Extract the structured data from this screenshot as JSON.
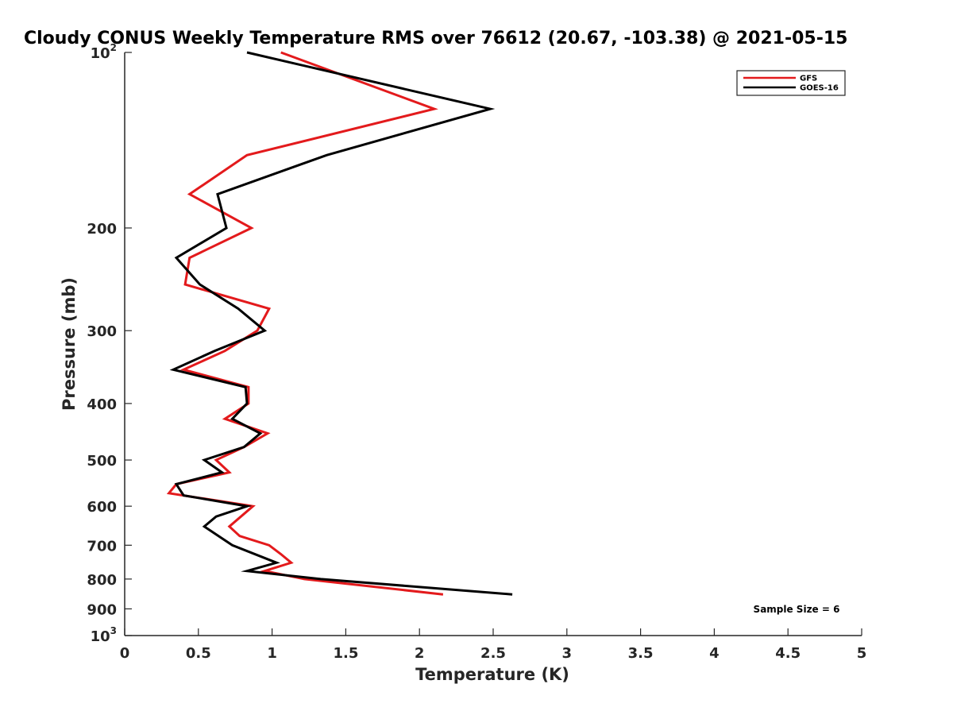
{
  "chart_data": {
    "type": "line",
    "title": "Cloudy CONUS Weekly Temperature RMS over 76612 (20.67, -103.38) @ 2021-05-15",
    "xlabel": "Temperature (K)",
    "ylabel": "Pressure (mb)",
    "xlim": [
      0,
      5
    ],
    "ylim": [
      100,
      1000
    ],
    "yscale": "log",
    "y_reversed": true,
    "x_ticks": [
      0,
      0.5,
      1,
      1.5,
      2,
      2.5,
      3,
      3.5,
      4,
      4.5,
      5
    ],
    "x_tick_labels": [
      "0",
      "0.5",
      "1",
      "1.5",
      "2",
      "2.5",
      "3",
      "3.5",
      "4",
      "4.5",
      "5"
    ],
    "y_ticks": [
      {
        "value": 100,
        "base": "10",
        "exp": "2"
      },
      {
        "value": 200,
        "label": "200"
      },
      {
        "value": 300,
        "label": "300"
      },
      {
        "value": 400,
        "label": "400"
      },
      {
        "value": 500,
        "label": "500"
      },
      {
        "value": 600,
        "label": "600"
      },
      {
        "value": 700,
        "label": "700"
      },
      {
        "value": 800,
        "label": "800"
      },
      {
        "value": 900,
        "label": "900"
      },
      {
        "value": 1000,
        "base": "10",
        "exp": "3"
      }
    ],
    "grid": false,
    "legend_position": "top-right",
    "series": [
      {
        "name": "GFS",
        "color": "#e31a1c",
        "points": [
          [
            1.06,
            100
          ],
          [
            2.1,
            125
          ],
          [
            0.83,
            150
          ],
          [
            0.44,
            175
          ],
          [
            0.86,
            200
          ],
          [
            0.44,
            225
          ],
          [
            0.41,
            250
          ],
          [
            0.98,
            275
          ],
          [
            0.9,
            300
          ],
          [
            0.68,
            325
          ],
          [
            0.4,
            350
          ],
          [
            0.84,
            375
          ],
          [
            0.84,
            400
          ],
          [
            0.68,
            425
          ],
          [
            0.97,
            450
          ],
          [
            0.81,
            475
          ],
          [
            0.62,
            500
          ],
          [
            0.71,
            525
          ],
          [
            0.35,
            550
          ],
          [
            0.3,
            570
          ],
          [
            0.87,
            600
          ],
          [
            0.71,
            650
          ],
          [
            0.78,
            675
          ],
          [
            0.98,
            700
          ],
          [
            1.06,
            725
          ],
          [
            1.13,
            750
          ],
          [
            0.95,
            775
          ],
          [
            1.22,
            800
          ],
          [
            2.16,
            850
          ]
        ]
      },
      {
        "name": "GOES-16",
        "color": "#000000",
        "points": [
          [
            0.83,
            100
          ],
          [
            2.48,
            125
          ],
          [
            1.37,
            150
          ],
          [
            0.63,
            175
          ],
          [
            0.69,
            200
          ],
          [
            0.35,
            225
          ],
          [
            0.51,
            250
          ],
          [
            0.77,
            275
          ],
          [
            0.95,
            300
          ],
          [
            0.61,
            325
          ],
          [
            0.33,
            350
          ],
          [
            0.82,
            375
          ],
          [
            0.83,
            400
          ],
          [
            0.73,
            425
          ],
          [
            0.92,
            450
          ],
          [
            0.81,
            475
          ],
          [
            0.54,
            500
          ],
          [
            0.66,
            525
          ],
          [
            0.35,
            550
          ],
          [
            0.4,
            575
          ],
          [
            0.83,
            600
          ],
          [
            0.62,
            625
          ],
          [
            0.54,
            650
          ],
          [
            0.73,
            700
          ],
          [
            1.03,
            750
          ],
          [
            0.83,
            775
          ],
          [
            1.33,
            800
          ],
          [
            2.63,
            850
          ]
        ]
      }
    ],
    "annotation": "Sample Size = 6"
  }
}
